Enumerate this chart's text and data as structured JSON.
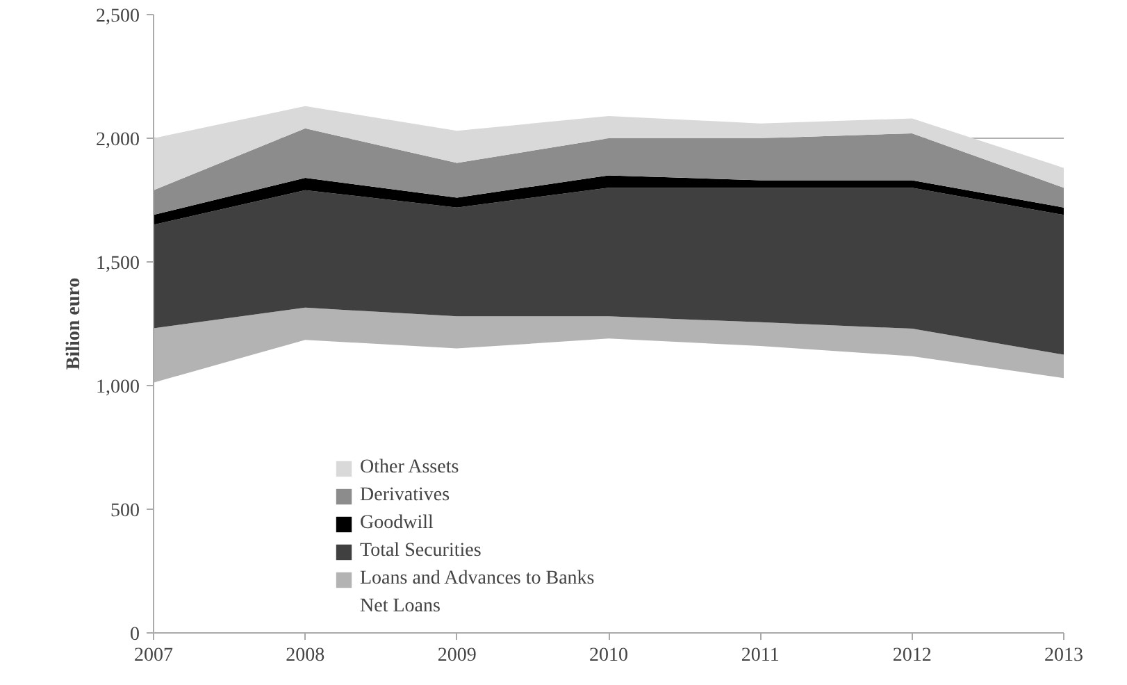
{
  "chart_data": {
    "type": "area",
    "stacked": true,
    "ylabel": "Bilion euro",
    "x": [
      2007,
      2008,
      2009,
      2010,
      2011,
      2012,
      2013
    ],
    "xlim": [
      2007,
      2013
    ],
    "xticks": [
      2007,
      2008,
      2009,
      2010,
      2011,
      2012,
      2013
    ],
    "ylim": [
      0,
      2500
    ],
    "yticks": [
      0,
      {
        "value": 500,
        "label": "500"
      },
      {
        "value": 1000,
        "label": "1,000"
      },
      {
        "value": 1500,
        "label": "1,500"
      },
      {
        "value": 2000,
        "label": "2,000"
      },
      {
        "value": 2500,
        "label": "2,500"
      }
    ],
    "grid": "y",
    "legend": "bottom left",
    "series": [
      {
        "name": "Net Loans",
        "color": "#ffffff",
        "values": [
          1012,
          1185,
          1150,
          1190,
          1160,
          1119,
          1030
        ]
      },
      {
        "name": "Loans and Advances to Banks",
        "color": "#b3b3b3",
        "values": [
          220,
          130,
          130,
          90,
          96,
          111,
          95
        ]
      },
      {
        "name": "Total Securities",
        "color": "#404040",
        "values": [
          418,
          475,
          440,
          520,
          544,
          570,
          565
        ]
      },
      {
        "name": "Goodwill",
        "color": "#000000",
        "values": [
          40,
          50,
          40,
          50,
          30,
          30,
          30
        ]
      },
      {
        "name": "Derivatives",
        "color": "#8c8c8c",
        "values": [
          100,
          200,
          140,
          150,
          170,
          190,
          80
        ]
      },
      {
        "name": "Other Assets",
        "color": "#d9d9d9",
        "values": [
          210,
          90,
          130,
          90,
          60,
          60,
          80
        ]
      }
    ]
  }
}
